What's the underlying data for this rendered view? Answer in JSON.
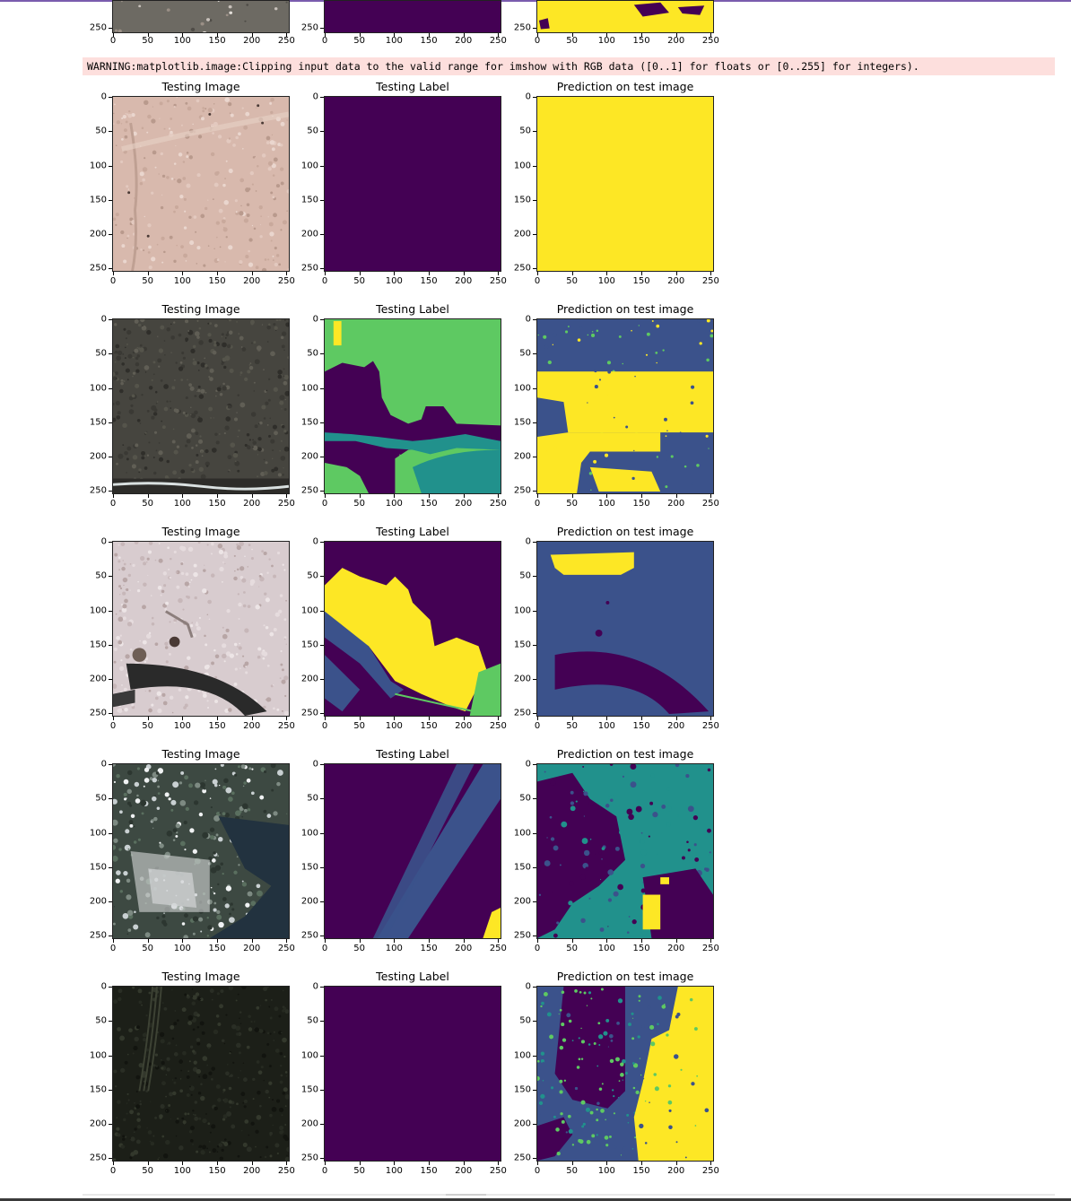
{
  "warning": {
    "text": "WARNING:matplotlib.image:Clipping input data to the valid range for imshow with RGB data ([0..1] for floats or [0..255] for integers)."
  },
  "axis": {
    "x_ticks": [
      "0",
      "50",
      "100",
      "150",
      "200",
      "250"
    ],
    "y_ticks": [
      "0",
      "50",
      "100",
      "150",
      "200",
      "250"
    ]
  },
  "colors": {
    "viridis_purple": "#440154",
    "viridis_blue": "#3b528b",
    "viridis_teal": "#21918c",
    "viridis_green": "#5ec962",
    "viridis_yellow": "#fde725",
    "warning_bg": "#fddfdd",
    "accent_bar": "#7a5cae"
  },
  "top_partial": {
    "x_ticks": [
      "0",
      "50",
      "100",
      "150",
      "200",
      "250"
    ],
    "y_tick": "250"
  },
  "rows": [
    {
      "titles": [
        "Testing Image",
        "Testing Label",
        "Prediction on test image"
      ]
    },
    {
      "titles": [
        "Testing Image",
        "Testing Label",
        "Prediction on test image"
      ]
    },
    {
      "titles": [
        "Testing Image",
        "Testing Label",
        "Prediction on test image"
      ]
    },
    {
      "titles": [
        "Testing Image",
        "Testing Label",
        "Prediction on test image"
      ]
    },
    {
      "titles": [
        "Testing Image",
        "Testing Label",
        "Prediction on test image"
      ]
    }
  ]
}
